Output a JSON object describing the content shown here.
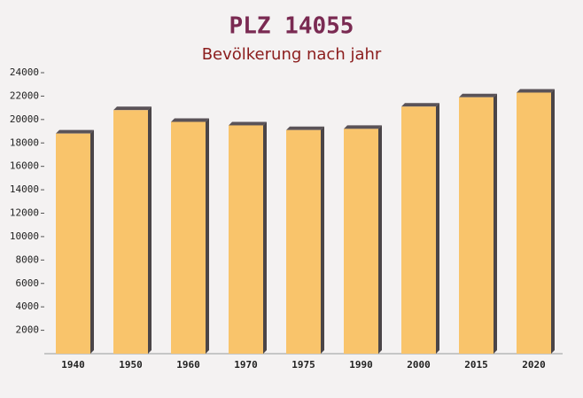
{
  "chart_data": {
    "type": "bar",
    "title": "PLZ 14055",
    "subtitle": "Bevölkerung nach jahr",
    "categories": [
      "1940",
      "1950",
      "1960",
      "1970",
      "1975",
      "1990",
      "2000",
      "2015",
      "2020"
    ],
    "values": [
      18800,
      20800,
      19800,
      19500,
      19100,
      19200,
      21100,
      21900,
      22300
    ],
    "color": "#f9c46b",
    "ylim": [
      0,
      24000
    ],
    "yticks": [
      2000,
      4000,
      6000,
      8000,
      10000,
      12000,
      14000,
      16000,
      18000,
      20000,
      22000,
      24000
    ]
  }
}
